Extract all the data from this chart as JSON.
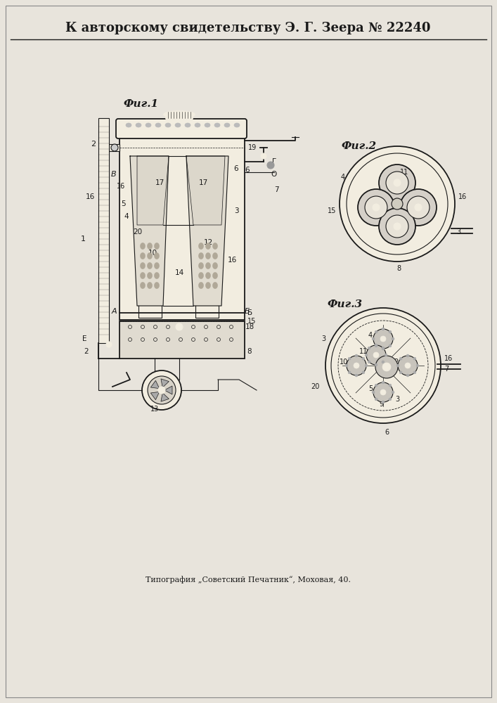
{
  "title": "К авторскому свидетельству Э. Г. Зеера № 22240",
  "footer": "Типография „Советский Печатник“, Моховая, 40.",
  "fig1_label": "Фиг.1",
  "fig2_label": "Фиг.2",
  "fig3_label": "Фиг.3",
  "bg_color": "#e8e4dc",
  "line_color": "#1a1a1a",
  "paper_color": "#f2ede0"
}
